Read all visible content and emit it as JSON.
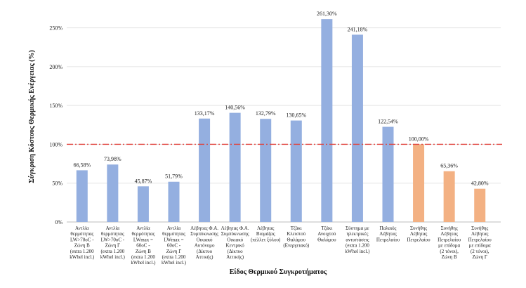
{
  "chart_data": {
    "type": "bar",
    "ylabel": "Σύγκριση Κόστους Θερμικής Ενέργειας (%)",
    "xlabel": "Είδος Θερμικού Συγκροτήματος",
    "ylim": [
      0,
      275
    ],
    "yticks": [
      0,
      50,
      100,
      150,
      200,
      250
    ],
    "ytick_labels": [
      "0%",
      "50%",
      "100%",
      "150%",
      "200%",
      "250%"
    ],
    "grid": true,
    "reference_line": {
      "value": 100,
      "color": "#e0403a",
      "style": "dash-dot"
    },
    "colors": {
      "default": "#94afe0",
      "highlight": "#f3b183"
    },
    "categories": [
      [
        "Αντλία",
        "θερμότητας",
        "LW>70oC -",
        "Ζώνη Β",
        "(extra 1.200",
        "kWhel incl.)"
      ],
      [
        "Αντλία",
        "θερμότητας",
        "LW>70oC -",
        "Ζώνη Γ",
        "(extra 1.200",
        "kWhel incl.)"
      ],
      [
        "Αντλία",
        "θερμότητας",
        "LWmax =",
        "60oC -",
        "Ζώνη Β",
        "(extra 1.200",
        "kWhel incl.)"
      ],
      [
        "Αντλία",
        "θερμότητας",
        "LWmax =",
        "60oC -",
        "Ζώνη Γ",
        "(extra 1.200",
        "kWhel incl.)"
      ],
      [
        "Λέβητας Φ.Α.",
        "Συμπύκνωσης",
        "Οικιακό",
        "Αυτόνομο",
        "(Δίκτυο",
        "Αττικής)"
      ],
      [
        "Λέβητας Φ.Α.",
        "Συμπύκνωσης",
        "Οικιακό",
        "Κεντρικό",
        "(Δίκτυο",
        "Αττικής)"
      ],
      [
        "Λέβητας",
        "Βιομάζας",
        "(πέλλετ ξύλου)"
      ],
      [
        "Τζάκι",
        "Κλειστού",
        "Θαλάμου",
        "(Ενεργειακό)"
      ],
      [
        "Τζάκι",
        "Ανοιχτού",
        "Θαλάμου"
      ],
      [
        "Σύστημα με",
        "ηλεκτρικές",
        "αντιστάσεις",
        "(extra 1.200",
        "kWhel incl.)"
      ],
      [
        "Παλαιός",
        "Λέβητας",
        "Πετρελαίου"
      ],
      [
        "Συνήθης",
        "Λέβητας",
        "Πετρελαίου"
      ],
      [
        "Συνήθης",
        "Λέβητας",
        "Πετρελαίου",
        "με επίδομα",
        "(2 τόνοι),",
        "Ζώνη Β"
      ],
      [
        "Συνήθης",
        "Λέβητας",
        "Πετρελαίου",
        "με επίδομα",
        "(2 τόνοι),",
        "Ζώνη Γ"
      ]
    ],
    "values": [
      66.58,
      73.98,
      45.87,
      51.79,
      133.17,
      140.56,
      132.79,
      130.65,
      261.3,
      241.18,
      122.54,
      100.0,
      65.36,
      42.8
    ],
    "value_labels": [
      "66,58%",
      "73,98%",
      "45,87%",
      "51,79%",
      "133,17%",
      "140,56%",
      "132,79%",
      "130,65%",
      "261,30%",
      "241,18%",
      "122,54%",
      "100,00%",
      "65,36%",
      "42,80%"
    ],
    "highlight": [
      false,
      false,
      false,
      false,
      false,
      false,
      false,
      false,
      false,
      false,
      false,
      true,
      true,
      true
    ]
  }
}
